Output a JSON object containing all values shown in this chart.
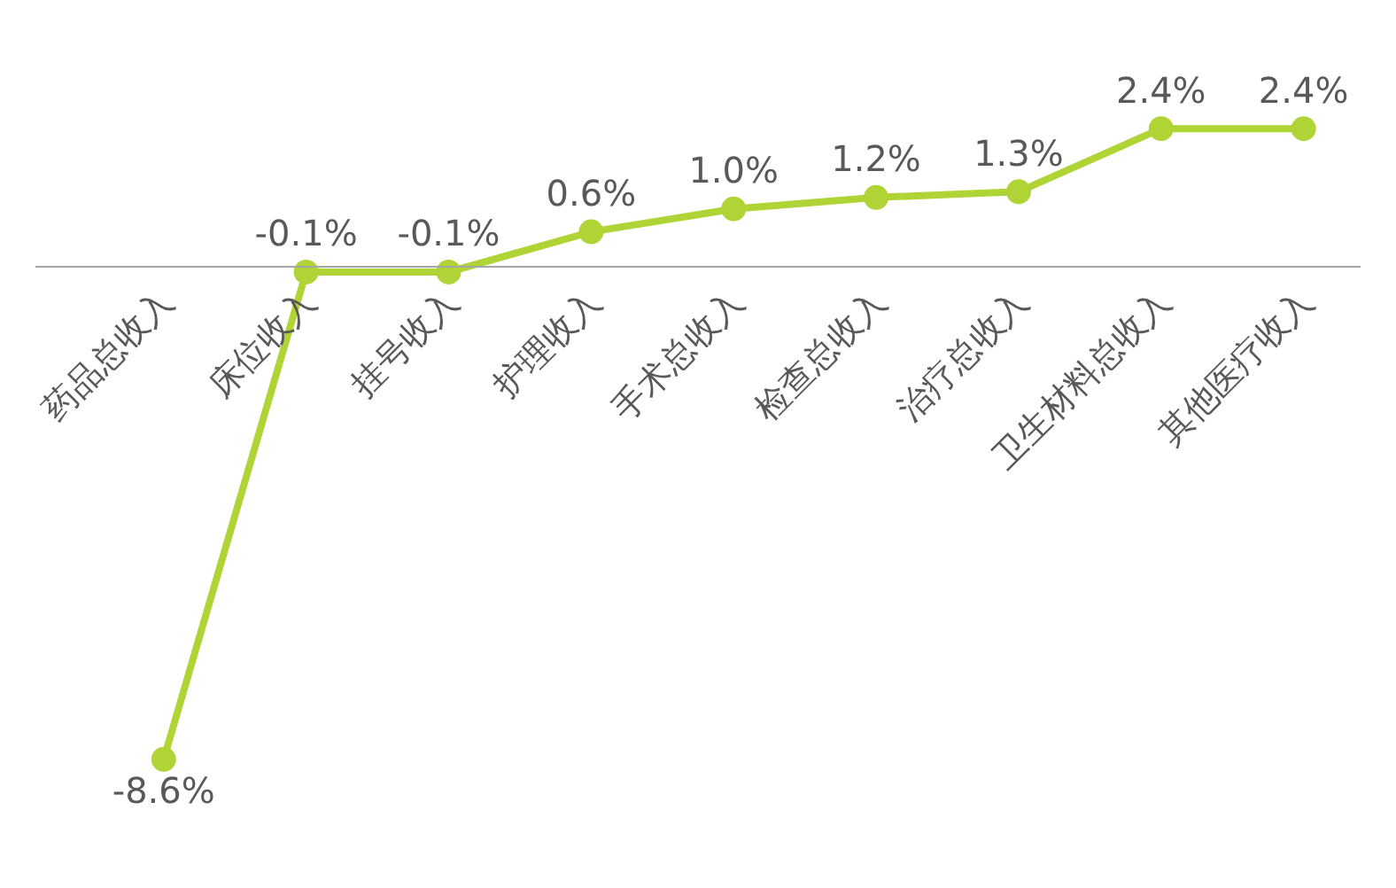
{
  "chart_data": {
    "type": "line",
    "categories": [
      "药品总收入",
      "床位收入",
      "挂号收入",
      "护理收入",
      "手术总收入",
      "检查总收入",
      "治疗总收入",
      "卫生材料总收入",
      "其他医疗收入"
    ],
    "series": [
      {
        "color": "#b0d335",
        "values": [
          -8.6,
          -0.1,
          -0.1,
          0.6,
          1.0,
          1.2,
          1.3,
          2.4,
          2.4
        ],
        "value_labels": [
          "-8.6%",
          "-0.1%",
          "-0.1%",
          "0.6%",
          "1.0%",
          "1.2%",
          "1.3%",
          "2.4%",
          "2.4%"
        ]
      }
    ],
    "marker": "circle",
    "line_style": "solid",
    "grid": false,
    "legend": false
  }
}
